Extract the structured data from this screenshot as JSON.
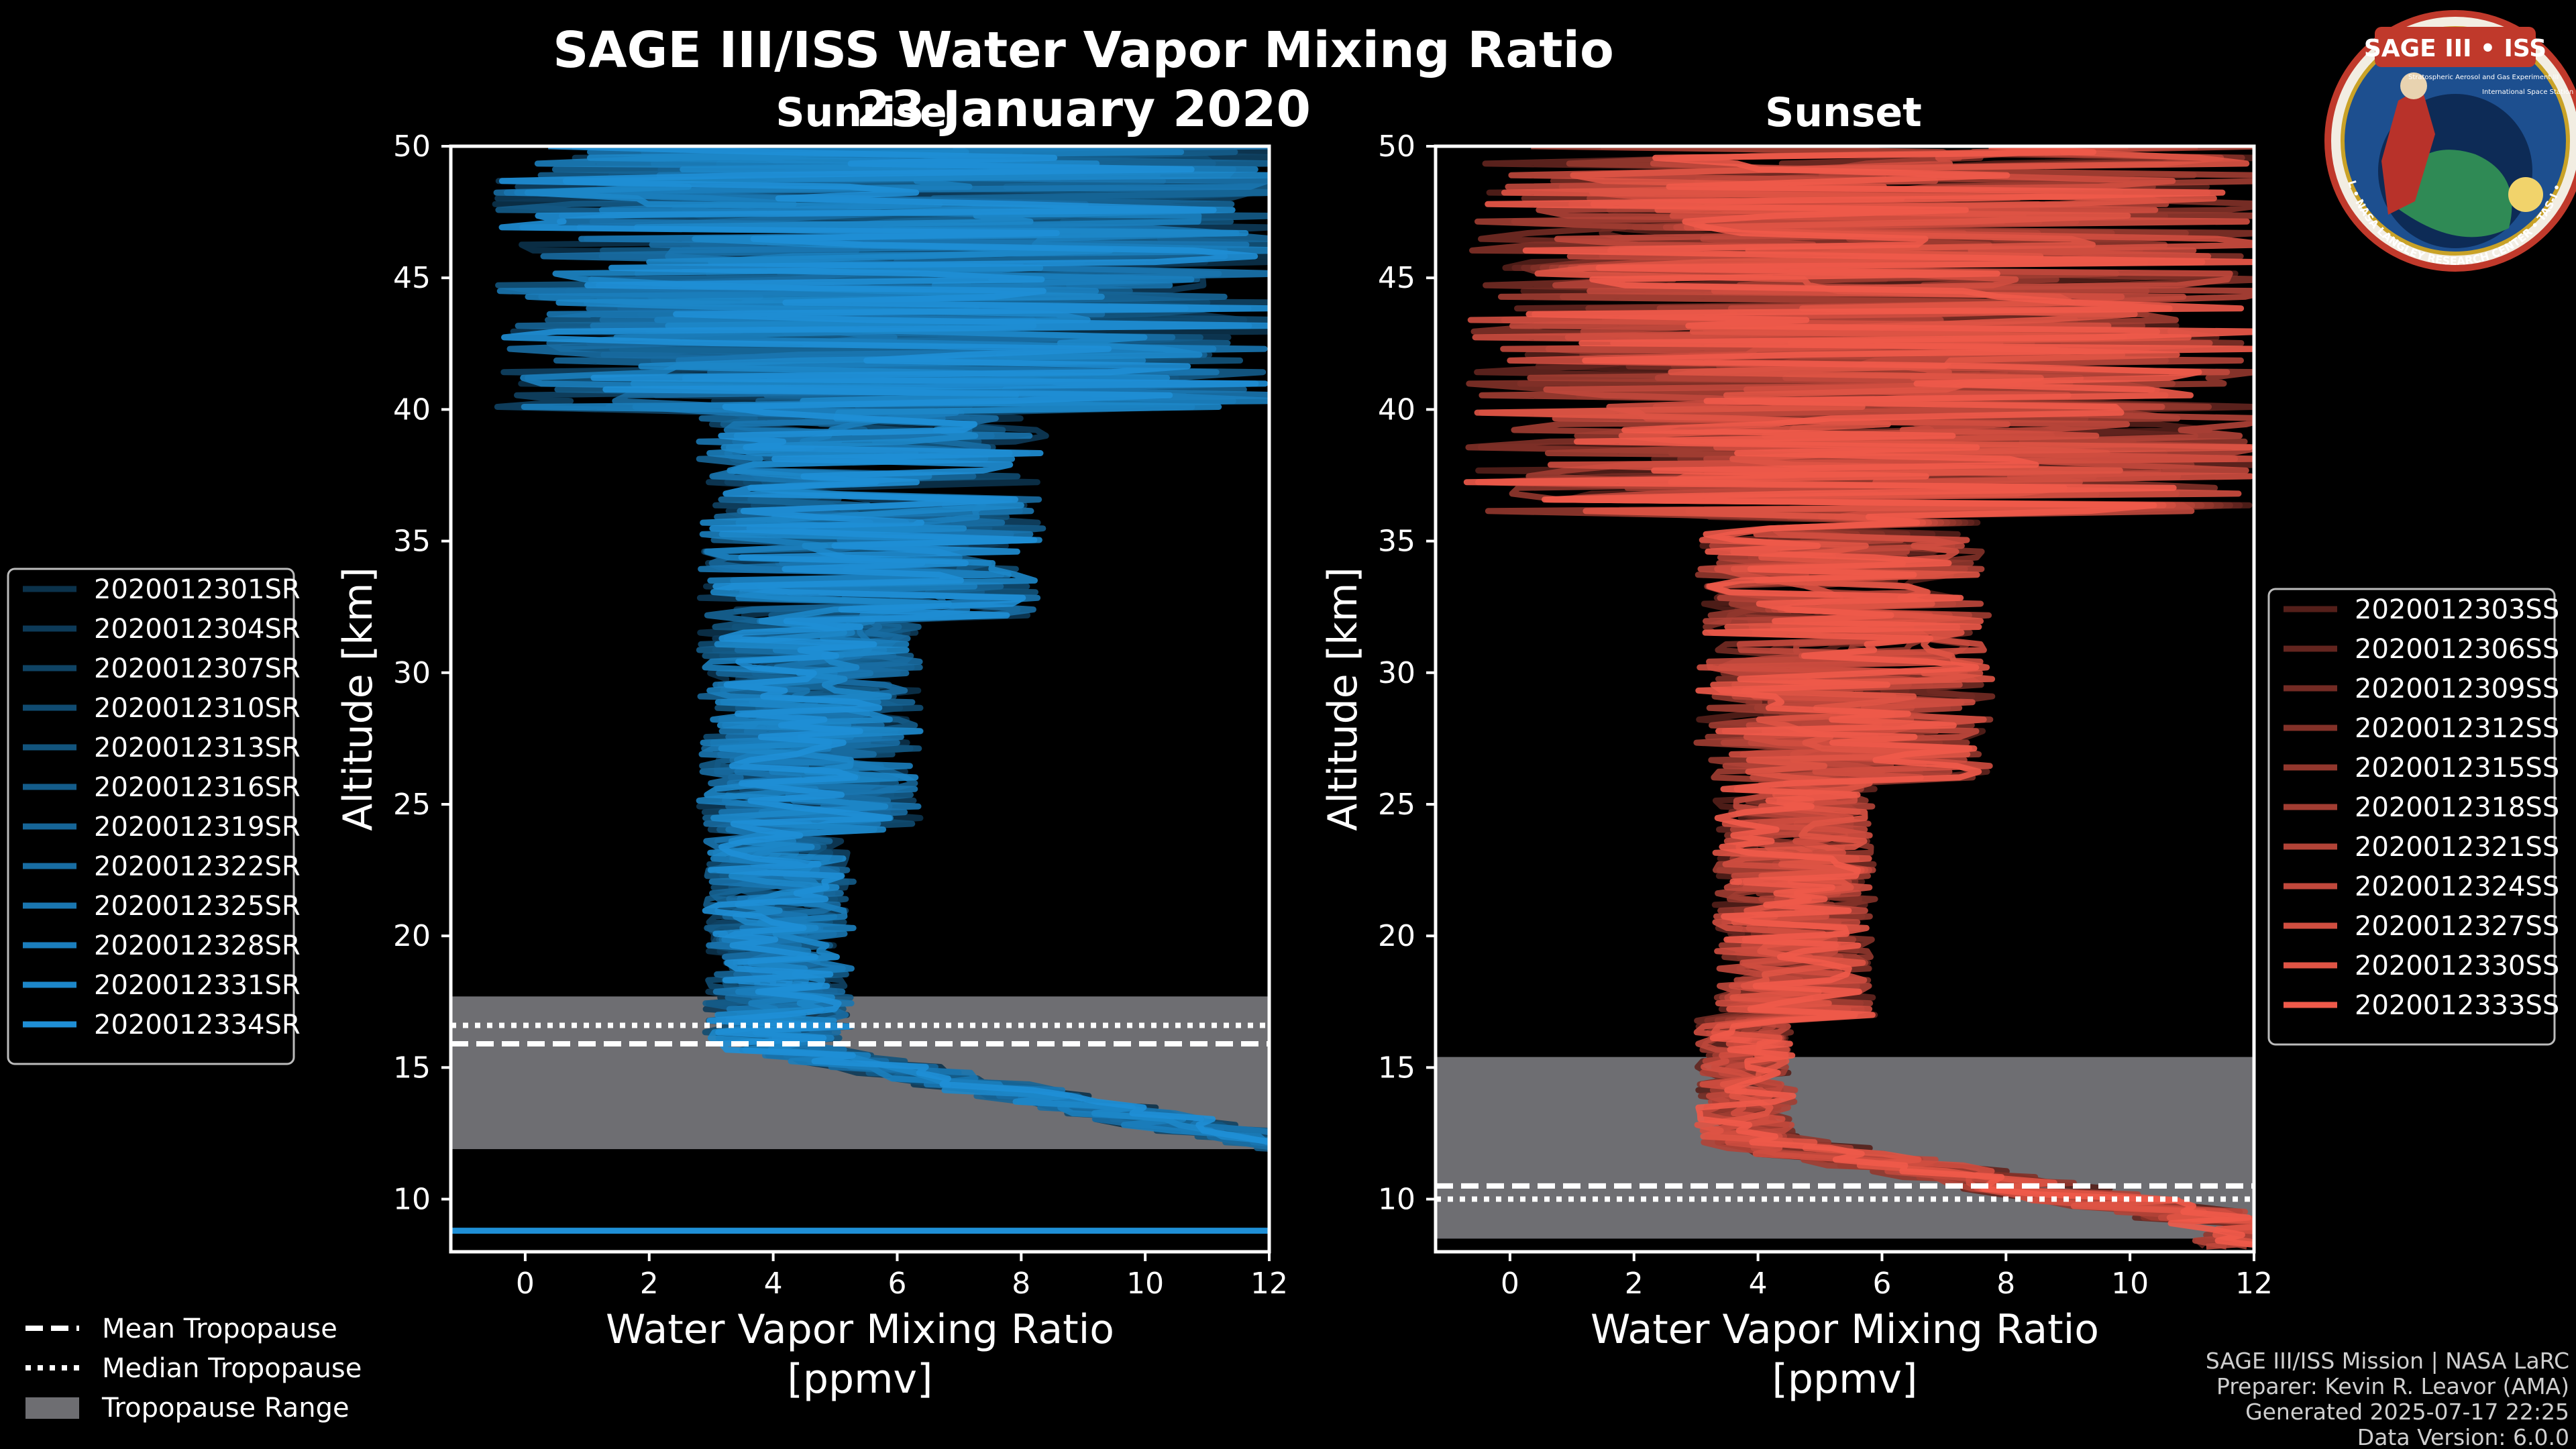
{
  "title": "SAGE III/ISS Water Vapor Mixing Ratio",
  "date": "23 January 2020",
  "colors": {
    "sunrise": "#1f8fd6",
    "sunset": "#ef5a4a",
    "background": "#000000",
    "range": "#6e6e72"
  },
  "chart_data": [
    {
      "type": "line",
      "title": "Sunrise",
      "xlabel": "Water Vapor Mixing Ratio",
      "xlabel2": "[ppmv]",
      "ylabel": "Altitude [km]",
      "xlim": [
        -1.2,
        12
      ],
      "ylim": [
        8,
        50
      ],
      "xticks": [
        "0",
        "2",
        "4",
        "6",
        "8",
        "10",
        "12"
      ],
      "yticks": [
        "10",
        "15",
        "20",
        "25",
        "30",
        "35",
        "40",
        "45",
        "50"
      ],
      "tropopause": {
        "mean": 15.9,
        "median": 16.6,
        "range_min": 11.9,
        "range_max": 17.7
      },
      "series": [
        {
          "name": "2020012301SR",
          "seed": 1
        },
        {
          "name": "2020012304SR",
          "seed": 2
        },
        {
          "name": "2020012307SR",
          "seed": 3
        },
        {
          "name": "2020012310SR",
          "seed": 4
        },
        {
          "name": "2020012313SR",
          "seed": 5
        },
        {
          "name": "2020012316SR",
          "seed": 6
        },
        {
          "name": "2020012319SR",
          "seed": 7
        },
        {
          "name": "2020012322SR",
          "seed": 8
        },
        {
          "name": "2020012325SR",
          "seed": 9
        },
        {
          "name": "2020012328SR",
          "seed": 10
        },
        {
          "name": "2020012331SR",
          "seed": 11
        },
        {
          "name": "2020012334SR",
          "seed": 12
        }
      ]
    },
    {
      "type": "line",
      "title": "Sunset",
      "xlabel": "Water Vapor Mixing Ratio",
      "xlabel2": "[ppmv]",
      "ylabel": "Altitude [km]",
      "xlim": [
        -1.2,
        12
      ],
      "ylim": [
        8,
        50
      ],
      "xticks": [
        "0",
        "2",
        "4",
        "6",
        "8",
        "10",
        "12"
      ],
      "yticks": [
        "10",
        "15",
        "20",
        "25",
        "30",
        "35",
        "40",
        "45",
        "50"
      ],
      "tropopause": {
        "mean": 10.5,
        "median": 10.0,
        "range_min": 8.5,
        "range_max": 15.4
      },
      "series": [
        {
          "name": "2020012303SS",
          "seed": 21
        },
        {
          "name": "2020012306SS",
          "seed": 22
        },
        {
          "name": "2020012309SS",
          "seed": 23
        },
        {
          "name": "2020012312SS",
          "seed": 24
        },
        {
          "name": "2020012315SS",
          "seed": 25
        },
        {
          "name": "2020012318SS",
          "seed": 26
        },
        {
          "name": "2020012321SS",
          "seed": 27
        },
        {
          "name": "2020012324SS",
          "seed": 28
        },
        {
          "name": "2020012327SS",
          "seed": 29
        },
        {
          "name": "2020012330SS",
          "seed": 30
        },
        {
          "name": "2020012333SS",
          "seed": 31
        }
      ]
    }
  ],
  "trop_legend": {
    "mean": "Mean Tropopause",
    "median": "Median Tropopause",
    "range": "Tropopause Range"
  },
  "footer": [
    "SAGE III/ISS Mission | NASA LaRC",
    "Preparer: Kevin R. Leavor (AMA)",
    "Generated 2025-07-17 22:25",
    "Data Version: 6.0.0"
  ],
  "logo": {
    "top": "SAGE III • ISS",
    "sub1": "Stratospheric Aerosol and Gas Experiment III",
    "sub2": "International Space Station",
    "bottom": "BALL • NASA LANGLEY RESEARCH CENTER • TAS-I • ESA"
  }
}
